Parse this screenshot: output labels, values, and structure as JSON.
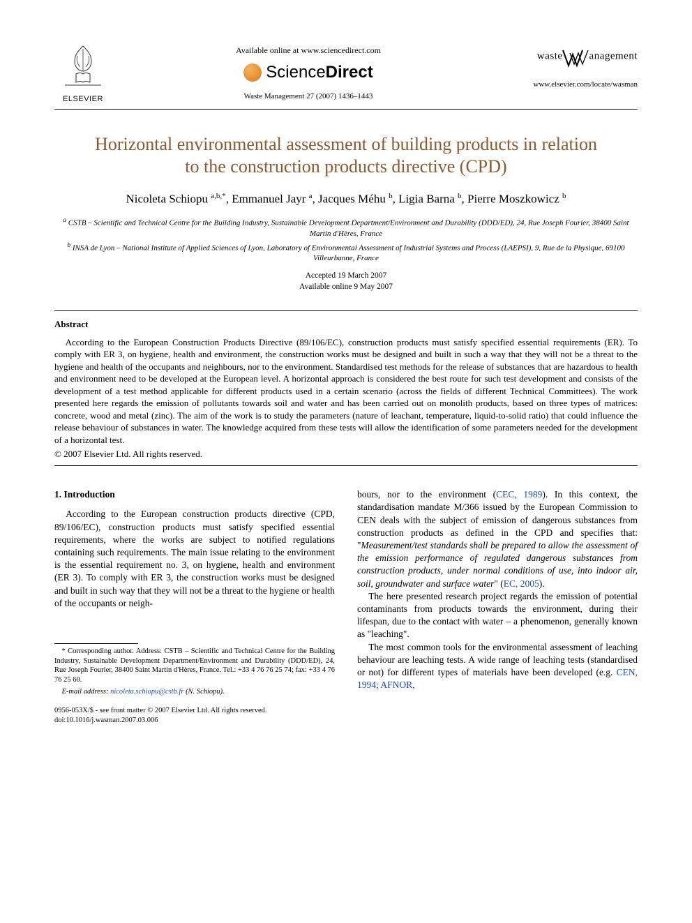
{
  "header": {
    "available_online": "Available online at www.sciencedirect.com",
    "sciencedirect_light": "Science",
    "sciencedirect_bold": "Direct",
    "citation": "Waste Management 27 (2007) 1436–1443",
    "elsevier_label": "ELSEVIER",
    "journal_word1": "waste",
    "journal_word2": "anagement",
    "locate_url": "www.elsevier.com/locate/wasman"
  },
  "title_line1": "Horizontal environmental assessment of building products in relation",
  "title_line2": "to the construction products directive (CPD)",
  "authors_html": "Nicoleta Schiopu <sup>a,b,*</sup>, Emmanuel Jayr <sup>a</sup>, Jacques Méhu <sup>b</sup>, Ligia Barna <sup>b</sup>, Pierre Moszkowicz <sup>b</sup>",
  "affiliations": {
    "a": "a CSTB – Scientific and Technical Centre for the Building Industry, Sustainable Development Department/Environment and Durability (DDD/ED), 24, Rue Joseph Fourier, 38400 Saint Martin d'Hères, France",
    "b": "b INSA de Lyon – National Institute of Applied Sciences of Lyon, Laboratory of Environmental Assessment of Industrial Systems and Process (LAEPSI), 9, Rue de la Physique, 69100 Villeurbanne, France"
  },
  "dates": {
    "accepted": "Accepted 19 March 2007",
    "online": "Available online 9 May 2007"
  },
  "abstract": {
    "heading": "Abstract",
    "body": "According to the European Construction Products Directive (89/106/EC), construction products must satisfy specified essential requirements (ER). To comply with ER 3, on hygiene, health and environment, the construction works must be designed and built in such a way that they will not be a threat to the hygiene and health of the occupants and neighbours, nor to the environment. Standardised test methods for the release of substances that are hazardous to health and environment need to be developed at the European level. A horizontal approach is considered the best route for such test development and consists of the development of a test method applicable for different products used in a certain scenario (across the fields of different Technical Committees). The work presented here regards the emission of pollutants towards soil and water and has been carried out on monolith products, based on three types of matrices: concrete, wood and metal (zinc). The aim of the work is to study the parameters (nature of leachant, temperature, liquid-to-solid ratio) that could influence the release behaviour of substances in water. The knowledge acquired from these tests will allow the identification of some parameters needed for the development of a horizontal test.",
    "copyright": "© 2007 Elsevier Ltd. All rights reserved."
  },
  "intro": {
    "heading": "1. Introduction",
    "p1": "According to the European construction products directive (CPD, 89/106/EC), construction products must satisfy specified essential requirements, where the works are subject to notified regulations containing such requirements. The main issue relating to the environment is the essential requirement no. 3, on hygiene, health and environment (ER 3). To comply with ER 3, the construction works must be designed and built in such way that they will not be a threat to the hygiene or health of the occupants or neigh-",
    "p2a": "bours, nor to the environment (",
    "p2_ref1": "CEC, 1989",
    "p2b": "). In this context, the standardisation mandate M/366 issued by the European Commission to CEN deals with the subject of emission of dangerous substances from construction products as defined in the CPD and specifies that: \"",
    "p2_quote": "Measurement/test standards shall be prepared to allow the assessment of the emission performance of regulated dangerous substances from construction products, under normal conditions of use, into indoor air, soil, groundwater and surface water",
    "p2c": "\" (",
    "p2_ref2": "EC, 2005",
    "p2d": ").",
    "p3": "The here presented research project regards the emission of potential contaminants from products towards the environment, during their lifespan, due to the contact with water – a phenomenon, generally known as \"leaching\".",
    "p4a": "The most common tools for the environmental assessment of leaching behaviour are leaching tests. A wide range of leaching tests (standardised or not) for different types of materials have been developed (e.g. ",
    "p4_ref": "CEN, 1994; AFNOR,"
  },
  "footnote": {
    "corr": "* Corresponding author. Address: CSTB – Scientific and Technical Centre for the Building Industry, Sustainable Development Department/Environment and Durability (DDD/ED), 24, Rue Joseph Fourier, 38400 Saint Martin d'Hères, France. Tel.: +33 4 76 76 25 74; fax: +33 4 76 76 25 60.",
    "email_label": "E-mail address:",
    "email": "nicoleta.schiopu@cstb.fr",
    "email_tail": " (N. Schiopu)."
  },
  "doi": {
    "line1": "0956-053X/$ - see front matter © 2007 Elsevier Ltd. All rights reserved.",
    "line2": "doi:10.1016/j.wasman.2007.03.006"
  },
  "colors": {
    "title": "#8a5a2e",
    "link": "#1a4cc0",
    "text": "#000000",
    "background": "#ffffff"
  }
}
